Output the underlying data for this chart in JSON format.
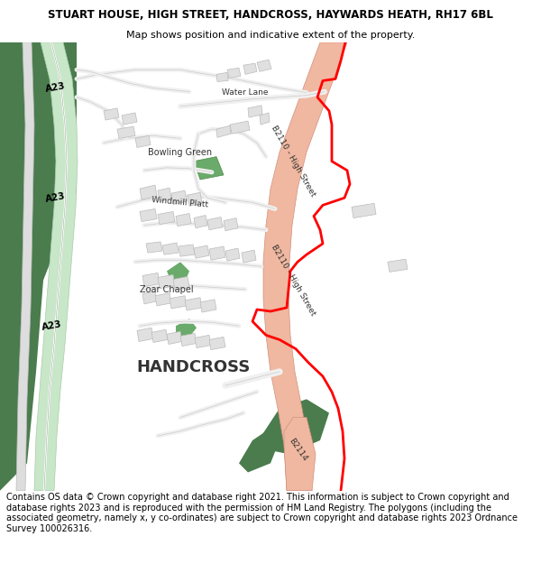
{
  "title_line1": "STUART HOUSE, HIGH STREET, HANDCROSS, HAYWARDS HEATH, RH17 6BL",
  "title_line2": "Map shows position and indicative extent of the property.",
  "footer_text": "Contains OS data © Crown copyright and database right 2021. This information is subject to Crown copyright and database rights 2023 and is reproduced with the permission of HM Land Registry. The polygons (including the associated geometry, namely x, y co-ordinates) are subject to Crown copyright and database rights 2023 Ordnance Survey 100026316.",
  "title_fontsize": 8.5,
  "subtitle_fontsize": 8,
  "footer_fontsize": 7.0,
  "fig_width": 6.0,
  "fig_height": 6.25,
  "dpi": 100,
  "bg_white": "#ffffff",
  "bg_map": "#ffffff",
  "green_dark": "#4a7c4e",
  "green_light": "#c8e6c8",
  "green_bowling": "#8dc98d",
  "road_salmon": "#f0b8a0",
  "road_white": "#ffffff",
  "road_outline": "#cccccc",
  "building_fill": "#e0e0e0",
  "building_outline": "#bbbbbb",
  "plot_red": "#ff0000",
  "label_color": "#333333",
  "a23_label_color": "#000000"
}
